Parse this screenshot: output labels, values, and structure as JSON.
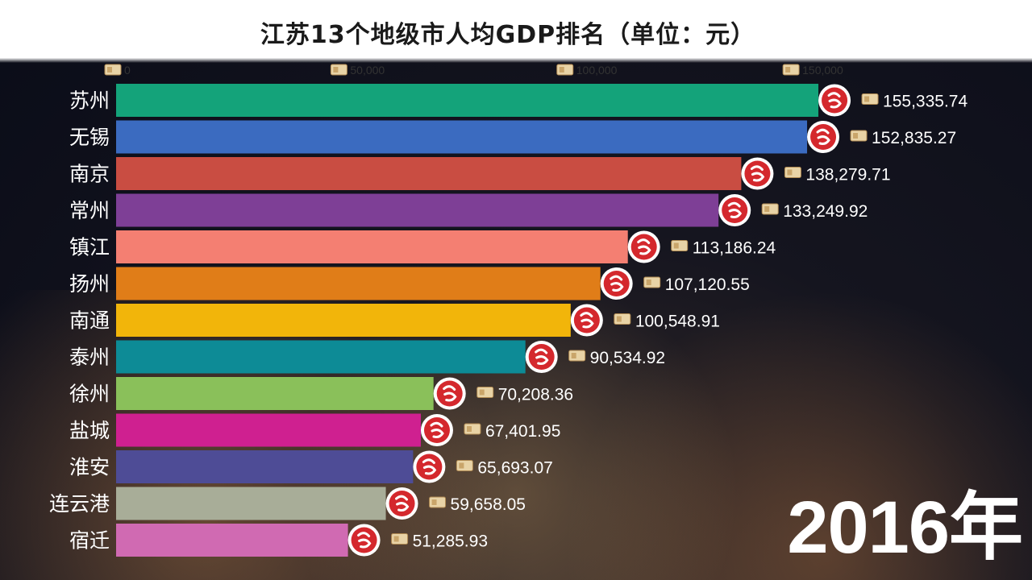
{
  "title": "江苏13个地级市人均GDP排名（单位：元）",
  "year": "2016年",
  "chart_data": {
    "type": "bar",
    "orientation": "horizontal",
    "title": "江苏13个地级市人均GDP排名（单位：元）",
    "xlim": [
      0,
      160000
    ],
    "xticks": [
      0,
      50000,
      100000,
      150000
    ],
    "xtick_labels": [
      "0",
      "50,000",
      "100,000",
      "150,000"
    ],
    "categories": [
      "苏州",
      "无锡",
      "南京",
      "常州",
      "镇江",
      "扬州",
      "南通",
      "泰州",
      "徐州",
      "盐城",
      "淮安",
      "连云港",
      "宿迁"
    ],
    "values": [
      155335.74,
      152835.27,
      138279.71,
      133249.92,
      113186.24,
      107120.55,
      100548.91,
      90534.92,
      70208.36,
      67401.95,
      65693.07,
      59658.05,
      51285.93
    ],
    "value_labels": [
      "155,335.74",
      "152,835.27",
      "138,279.71",
      "133,249.92",
      "113,186.24",
      "107,120.55",
      "100,548.91",
      "90,534.92",
      "70,208.36",
      "67,401.95",
      "65,693.07",
      "59,658.05",
      "51,285.93"
    ],
    "colors": [
      "#14a37a",
      "#3b6bc0",
      "#c94d42",
      "#7e3f96",
      "#f47f72",
      "#e07d18",
      "#f2b50a",
      "#0d8b96",
      "#8ac05a",
      "#cf2090",
      "#4e4c96",
      "#a8ad98",
      "#d06ab2"
    ]
  }
}
